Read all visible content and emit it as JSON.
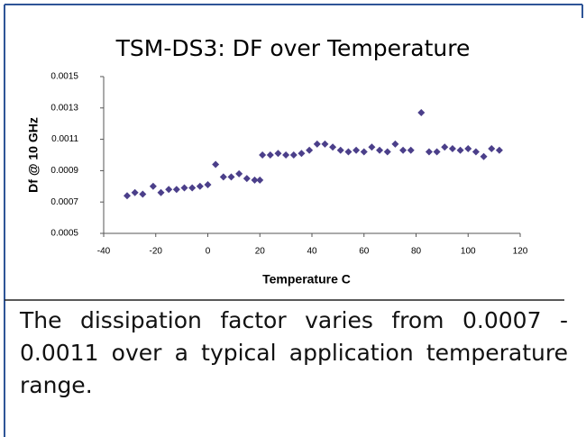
{
  "chart_data": {
    "type": "scatter",
    "title": "TSM-DS3: DF over Temperature",
    "x_label": "Temperature C",
    "y_label": "Df @ 10 GHz",
    "color": "#4b3f8a",
    "x": [
      -31,
      -28,
      -25,
      -21,
      -18,
      -15,
      -12,
      -9,
      -6,
      -3,
      0,
      3,
      6,
      9,
      12,
      15,
      18,
      20,
      21,
      24,
      27,
      30,
      33,
      36,
      39,
      42,
      45,
      48,
      51,
      54,
      57,
      60,
      63,
      66,
      69,
      72,
      75,
      78,
      82,
      85,
      88,
      91,
      94,
      97,
      100,
      103,
      106,
      109,
      112
    ],
    "values": [
      0.00074,
      0.00076,
      0.00075,
      0.0008,
      0.00076,
      0.00078,
      0.00078,
      0.00079,
      0.00079,
      0.0008,
      0.00081,
      0.00094,
      0.00086,
      0.00086,
      0.00088,
      0.00085,
      0.00084,
      0.00084,
      0.001,
      0.001,
      0.00101,
      0.001,
      0.001,
      0.00101,
      0.00103,
      0.00107,
      0.00107,
      0.00105,
      0.00103,
      0.00102,
      0.00103,
      0.00102,
      0.00105,
      0.00103,
      0.00102,
      0.00107,
      0.00103,
      0.00103,
      0.00127,
      0.00102,
      0.00102,
      0.00105,
      0.00104,
      0.00103,
      0.00104,
      0.00102,
      0.00099,
      0.00104,
      0.00103
    ],
    "xlim": [
      -40,
      120
    ],
    "xticks": [
      -40,
      -20,
      0,
      20,
      40,
      60,
      80,
      100,
      120
    ],
    "ylim": [
      0.0005,
      0.0015
    ],
    "yticks": [
      0.0005,
      0.0007,
      0.0009,
      0.0011,
      0.0013,
      0.0015
    ]
  },
  "caption": "The dissipation factor varies from 0.0007 - 0.0011 over a typical application temperature range."
}
